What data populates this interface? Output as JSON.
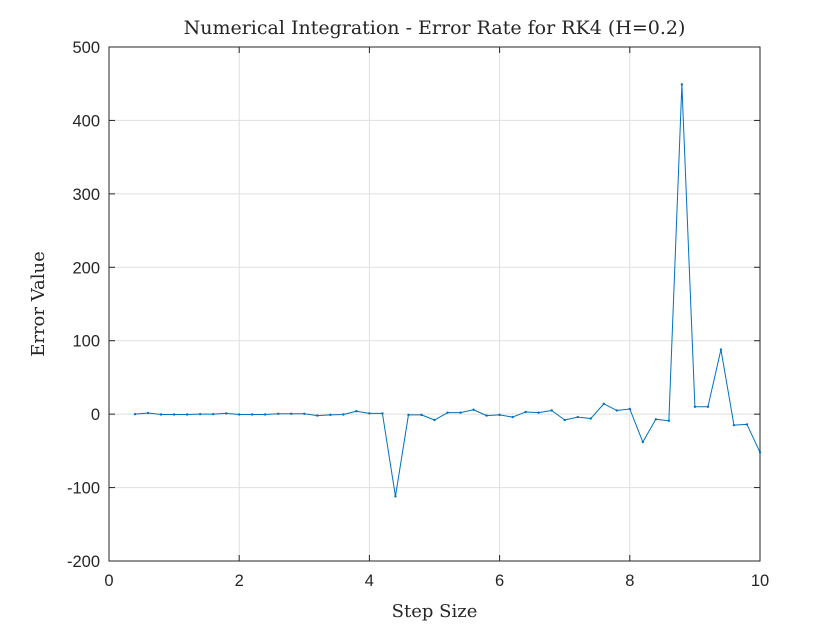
{
  "chart_data": {
    "type": "line",
    "title": "Numerical Integration - Error Rate for RK4 (H=0.2)",
    "xlabel": "Step Size",
    "ylabel": "Error Value",
    "xlim": [
      0,
      10
    ],
    "ylim": [
      -200,
      500
    ],
    "xticks": [
      0,
      2,
      4,
      6,
      8,
      10
    ],
    "yticks": [
      -200,
      -100,
      0,
      100,
      200,
      300,
      400,
      500
    ],
    "grid": true,
    "line_color": "#0072BD",
    "series": [
      {
        "x": [
          0.4,
          0.6,
          0.8,
          1.0,
          1.2,
          1.4,
          1.6,
          1.8,
          2.0,
          2.2,
          2.4,
          2.6,
          2.8,
          3.0,
          3.2,
          3.4,
          3.6,
          3.8,
          4.0,
          4.2,
          4.4,
          4.6,
          4.8,
          5.0,
          5.2,
          5.4,
          5.6,
          5.8,
          6.0,
          6.2,
          6.4,
          6.6,
          6.8,
          7.0,
          7.2,
          7.4,
          7.6,
          7.8,
          8.0,
          8.2,
          8.4,
          8.6,
          8.8,
          9.0,
          9.2,
          9.4,
          9.6,
          9.8,
          10.0
        ],
        "values": [
          0,
          1.5,
          -0.5,
          -0.5,
          -0.5,
          0,
          0,
          1,
          -0.5,
          -0.5,
          -0.5,
          0.5,
          0.5,
          0.5,
          -2,
          -1,
          -0.5,
          4,
          1,
          1,
          -112,
          -1,
          -1,
          -8,
          2,
          2,
          6,
          -2,
          -1,
          -4,
          3,
          2,
          5,
          -8,
          -4,
          -6,
          14,
          5,
          7,
          -38,
          -7,
          -9,
          449,
          10,
          10,
          88,
          -15,
          -14,
          -52
        ]
      }
    ]
  }
}
